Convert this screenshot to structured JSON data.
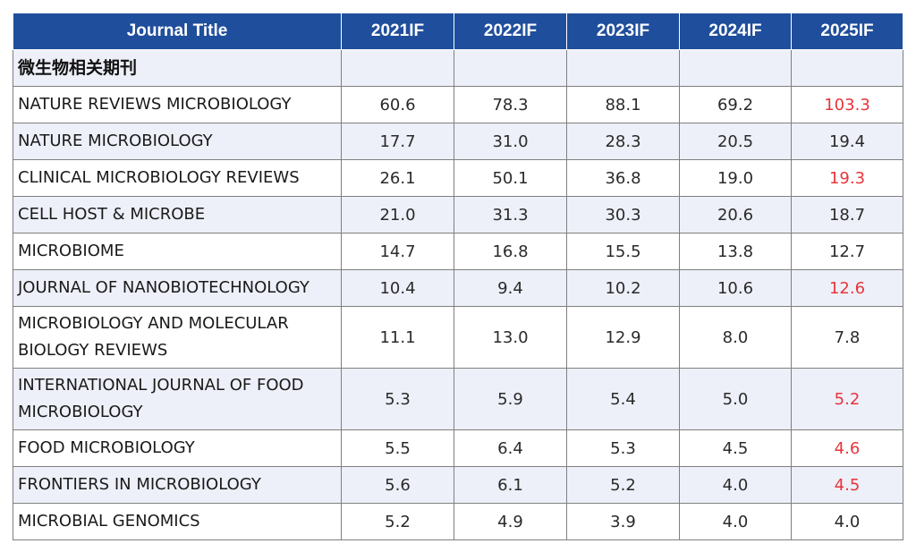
{
  "header": {
    "journal_title": "Journal Title",
    "years": [
      "2021IF",
      "2022IF",
      "2023IF",
      "2024IF",
      "2025IF"
    ]
  },
  "category_label": "微生物相关期刊",
  "highlight_color": "#e8343b",
  "header_color": "#1f4e9c",
  "rows": [
    {
      "title": "NATURE REVIEWS MICROBIOLOGY",
      "values": [
        "60.6",
        "78.3",
        "88.1",
        "69.2",
        "103.3"
      ],
      "highlight": true
    },
    {
      "title": "NATURE MICROBIOLOGY",
      "values": [
        "17.7",
        "31.0",
        "28.3",
        "20.5",
        "19.4"
      ],
      "highlight": false
    },
    {
      "title": "CLINICAL MICROBIOLOGY REVIEWS",
      "values": [
        "26.1",
        "50.1",
        "36.8",
        "19.0",
        "19.3"
      ],
      "highlight": true
    },
    {
      "title": "CELL HOST & MICROBE",
      "values": [
        "21.0",
        "31.3",
        "30.3",
        "20.6",
        "18.7"
      ],
      "highlight": false
    },
    {
      "title": "MICROBIOME",
      "values": [
        "14.7",
        "16.8",
        "15.5",
        "13.8",
        "12.7"
      ],
      "highlight": false
    },
    {
      "title": "JOURNAL OF NANOBIOTECHNOLOGY",
      "values": [
        "10.4",
        "9.4",
        "10.2",
        "10.6",
        "12.6"
      ],
      "highlight": true
    },
    {
      "title": "MICROBIOLOGY AND MOLECULAR BIOLOGY REVIEWS",
      "values": [
        "11.1",
        "13.0",
        "12.9",
        "8.0",
        "7.8"
      ],
      "highlight": false
    },
    {
      "title": "INTERNATIONAL JOURNAL OF FOOD MICROBIOLOGY",
      "values": [
        "5.3",
        "5.9",
        "5.4",
        "5.0",
        "5.2"
      ],
      "highlight": true
    },
    {
      "title": "FOOD MICROBIOLOGY",
      "values": [
        "5.5",
        "6.4",
        "5.3",
        "4.5",
        "4.6"
      ],
      "highlight": true
    },
    {
      "title": "FRONTIERS IN MICROBIOLOGY",
      "values": [
        "5.6",
        "6.1",
        "5.2",
        "4.0",
        "4.5"
      ],
      "highlight": true
    },
    {
      "title": "MICROBIAL GENOMICS",
      "values": [
        "5.2",
        "4.9",
        "3.9",
        "4.0",
        "4.0"
      ],
      "highlight": false
    }
  ]
}
